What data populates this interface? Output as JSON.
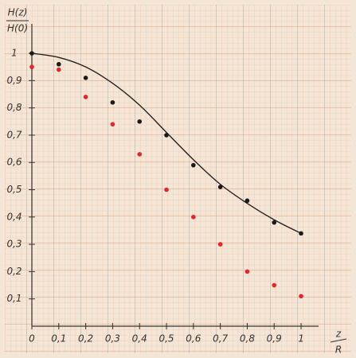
{
  "chart_data": {
    "type": "scatter",
    "y_label_top": "H(z)",
    "y_label_bottom": "H(0)",
    "x_label_top": "z",
    "x_label_bottom": "R",
    "x": [
      0,
      0.1,
      0.2,
      0.3,
      0.4,
      0.5,
      0.6,
      0.7,
      0.8,
      0.9,
      1
    ],
    "series": [
      {
        "color": "#222222",
        "style": "line",
        "values": [
          1.0,
          0.985,
          0.95,
          0.89,
          0.81,
          0.71,
          0.61,
          0.52,
          0.45,
          0.39,
          0.34
        ]
      },
      {
        "color": "#1a1a1a",
        "style": "markers",
        "values": [
          1.0,
          0.96,
          0.91,
          0.82,
          0.75,
          0.7,
          0.59,
          0.51,
          0.46,
          0.38,
          0.34
        ]
      },
      {
        "color": "#e8232a",
        "style": "markers",
        "values": [
          0.95,
          0.94,
          0.84,
          0.74,
          0.63,
          0.5,
          0.4,
          0.3,
          0.2,
          0.15,
          0.11
        ]
      }
    ],
    "xlim": [
      0,
      1.12
    ],
    "ylim": [
      0,
      1.1
    ],
    "xticks": [
      0,
      {
        "value": 0.1,
        "label": "0,1"
      },
      {
        "value": 0.2,
        "label": "0,2"
      },
      {
        "value": 0.3,
        "label": "0,3"
      },
      {
        "value": 0.4,
        "label": "0,4"
      },
      {
        "value": 0.5,
        "label": "0,5"
      },
      {
        "value": 0.6,
        "label": "0,6"
      },
      {
        "value": 0.7,
        "label": "0,7"
      },
      {
        "value": 0.8,
        "label": "0,8"
      },
      {
        "value": 0.9,
        "label": "0,9"
      },
      1
    ],
    "yticks": [
      {
        "value": 0.1,
        "label": "0,1"
      },
      {
        "value": 0.2,
        "label": "0,2"
      },
      {
        "value": 0.3,
        "label": "0,3"
      },
      {
        "value": 0.4,
        "label": "0,4"
      },
      {
        "value": 0.5,
        "label": "0,5"
      },
      {
        "value": 0.6,
        "label": "0,6"
      },
      {
        "value": 0.7,
        "label": "0,7"
      },
      {
        "value": 0.8,
        "label": "0,8"
      },
      {
        "value": 0.9,
        "label": "0,9"
      },
      1
    ]
  }
}
